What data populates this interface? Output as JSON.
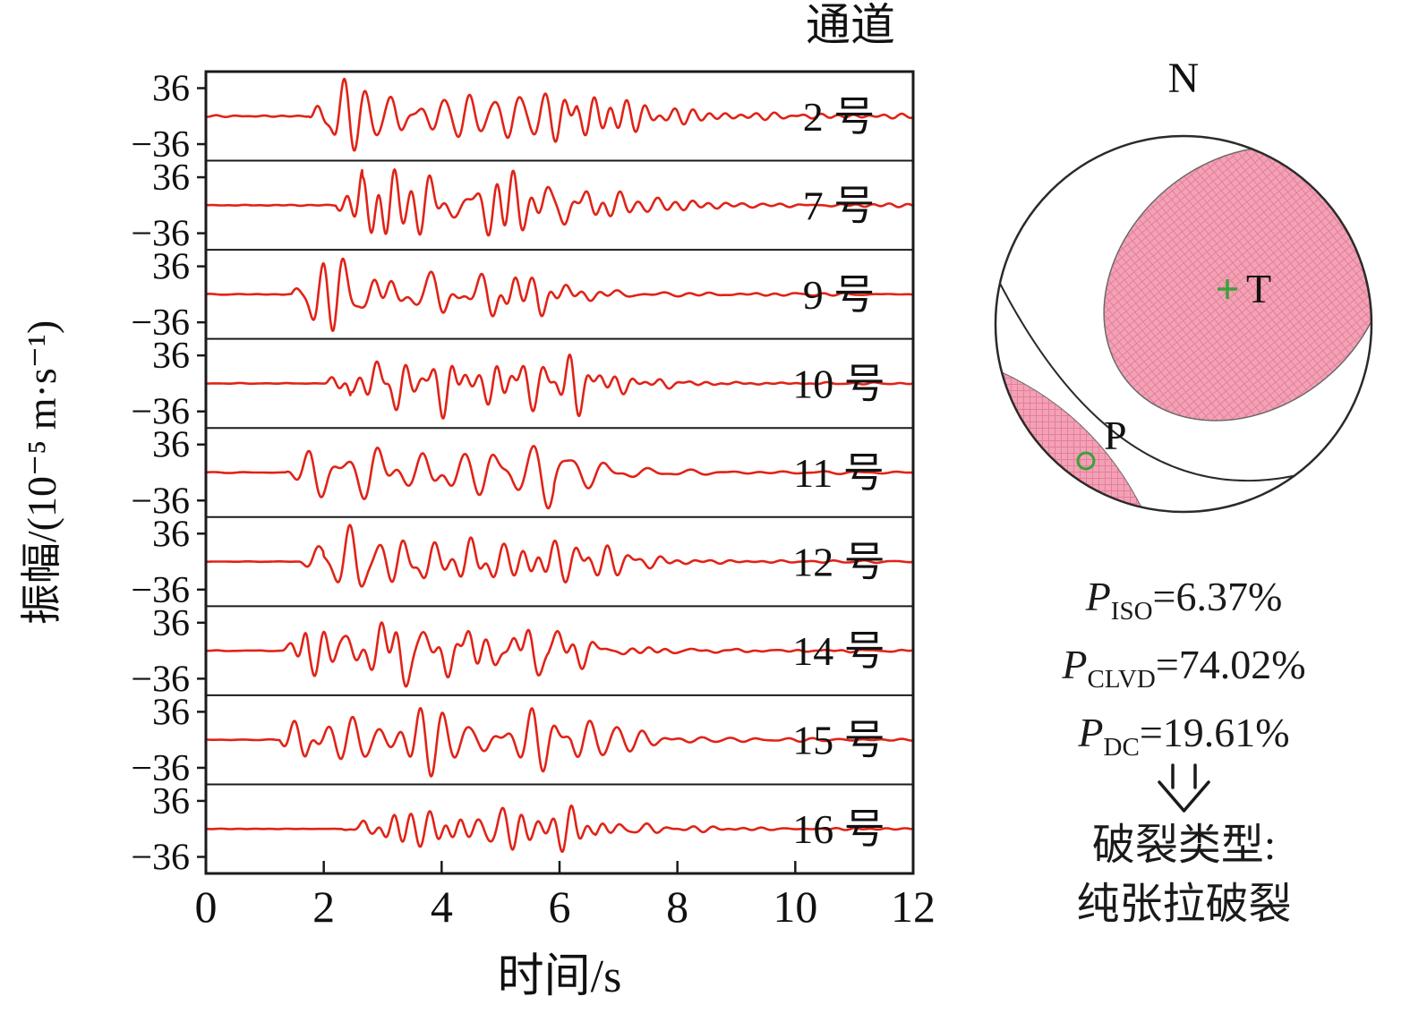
{
  "title": "通道",
  "axes": {
    "xlabel": "时间/s",
    "ylabel": "振幅/(10⁻⁵ m·s⁻¹)",
    "y_tick_top": "36",
    "y_tick_bottom": "−36"
  },
  "chart_data": {
    "type": "line",
    "title": "通道",
    "xlabel": "时间/s",
    "ylabel": "振幅/(10⁻⁵ m·s⁻¹)",
    "xlim": [
      0,
      12
    ],
    "x_ticks": [
      0,
      2,
      4,
      6,
      8,
      10,
      12
    ],
    "per_trace_ylim": [
      -36,
      36
    ],
    "y_tick_labels": [
      "36",
      "−36"
    ],
    "trace_color": "#e02318",
    "grid": false,
    "description": "Nine stacked velocity seismograms (microseismic waveforms), one per channel; quiet until P-onset, strong oscillatory burst until about 6 s, then low-amplitude coda to 12 s",
    "channels": [
      {
        "label": "2 号",
        "onset_s": 1.75,
        "main_end_s": 6.3,
        "peak_amplitude": 48,
        "seed": 2
      },
      {
        "label": "7 号",
        "onset_s": 2.2,
        "main_end_s": 6.3,
        "peak_amplitude": 46,
        "seed": 7
      },
      {
        "label": "9 号",
        "onset_s": 1.45,
        "main_end_s": 5.6,
        "peak_amplitude": 47,
        "seed": 9
      },
      {
        "label": "10 号",
        "onset_s": 2.0,
        "main_end_s": 6.4,
        "peak_amplitude": 45,
        "seed": 10
      },
      {
        "label": "11 号",
        "onset_s": 1.35,
        "main_end_s": 5.9,
        "peak_amplitude": 46,
        "seed": 11
      },
      {
        "label": "12 号",
        "onset_s": 1.55,
        "main_end_s": 6.5,
        "peak_amplitude": 47,
        "seed": 12
      },
      {
        "label": "14 号",
        "onset_s": 1.3,
        "main_end_s": 5.8,
        "peak_amplitude": 46,
        "seed": 14
      },
      {
        "label": "15 号",
        "onset_s": 1.25,
        "main_end_s": 6.2,
        "peak_amplitude": 47,
        "seed": 15
      },
      {
        "label": "16 号",
        "onset_s": 2.3,
        "main_end_s": 6.6,
        "peak_amplitude": 30,
        "seed": 16
      }
    ]
  },
  "beachball": {
    "north_label": "N",
    "t_label": "T",
    "p_label": "P",
    "fill_color": "#f2a2b6",
    "hatch_color": "#e67e97",
    "marker_color": "#3ba23b"
  },
  "stats": [
    {
      "symbol": "P",
      "subscript": "ISO",
      "value": "=6.37%"
    },
    {
      "symbol": "P",
      "subscript": "CLVD",
      "value": "=74.02%"
    },
    {
      "symbol": "P",
      "subscript": "DC",
      "value": "=19.61%"
    }
  ],
  "conclusion": {
    "line1": "破裂类型:",
    "line2": "纯张拉破裂"
  }
}
